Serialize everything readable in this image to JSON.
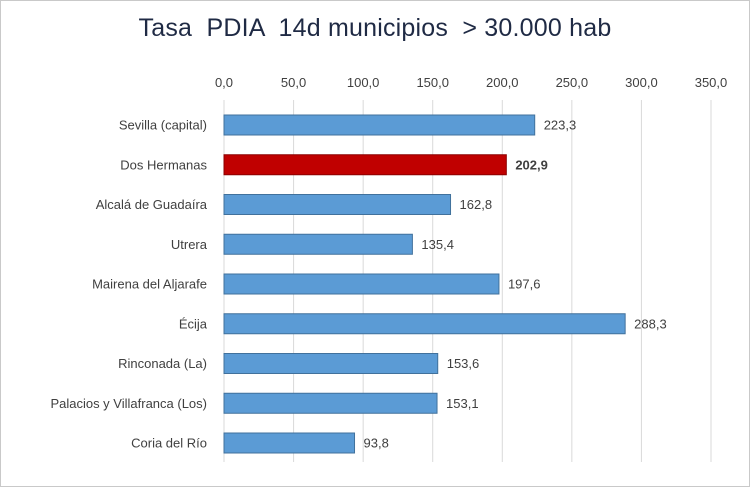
{
  "chart_data": {
    "type": "bar",
    "orientation": "horizontal",
    "title": "Tasa  PDIA  14d municipios  > 30.000 hab",
    "categories": [
      "Sevilla (capital)",
      "Dos Hermanas",
      "Alcalá de Guadaíra",
      "Utrera",
      "Mairena del Aljarafe",
      "Écija",
      "Rinconada (La)",
      "Palacios y Villafranca (Los)",
      "Coria del Río"
    ],
    "values": [
      223.3,
      202.9,
      162.8,
      135.4,
      197.6,
      288.3,
      153.6,
      153.1,
      93.8
    ],
    "data_labels": [
      "223,3",
      "202,9",
      "162,8",
      "135,4",
      "197,6",
      "288,3",
      "153,6",
      "153,1",
      "93,8"
    ],
    "highlight_index": 1,
    "xlim": [
      0,
      350
    ],
    "x_ticks": [
      "0,0",
      "50,0",
      "100,0",
      "150,0",
      "200,0",
      "250,0",
      "300,0",
      "350,0"
    ],
    "x_axis_position": "top",
    "grid": "vertical",
    "legend": "none",
    "colors": {
      "bar": "#5b9bd5",
      "bar_border": "#41719c",
      "highlight": "#c00000",
      "highlight_border": "#8b0000",
      "grid": "#d9d9d9",
      "text": "#404040",
      "title": "#1f2a44"
    }
  }
}
